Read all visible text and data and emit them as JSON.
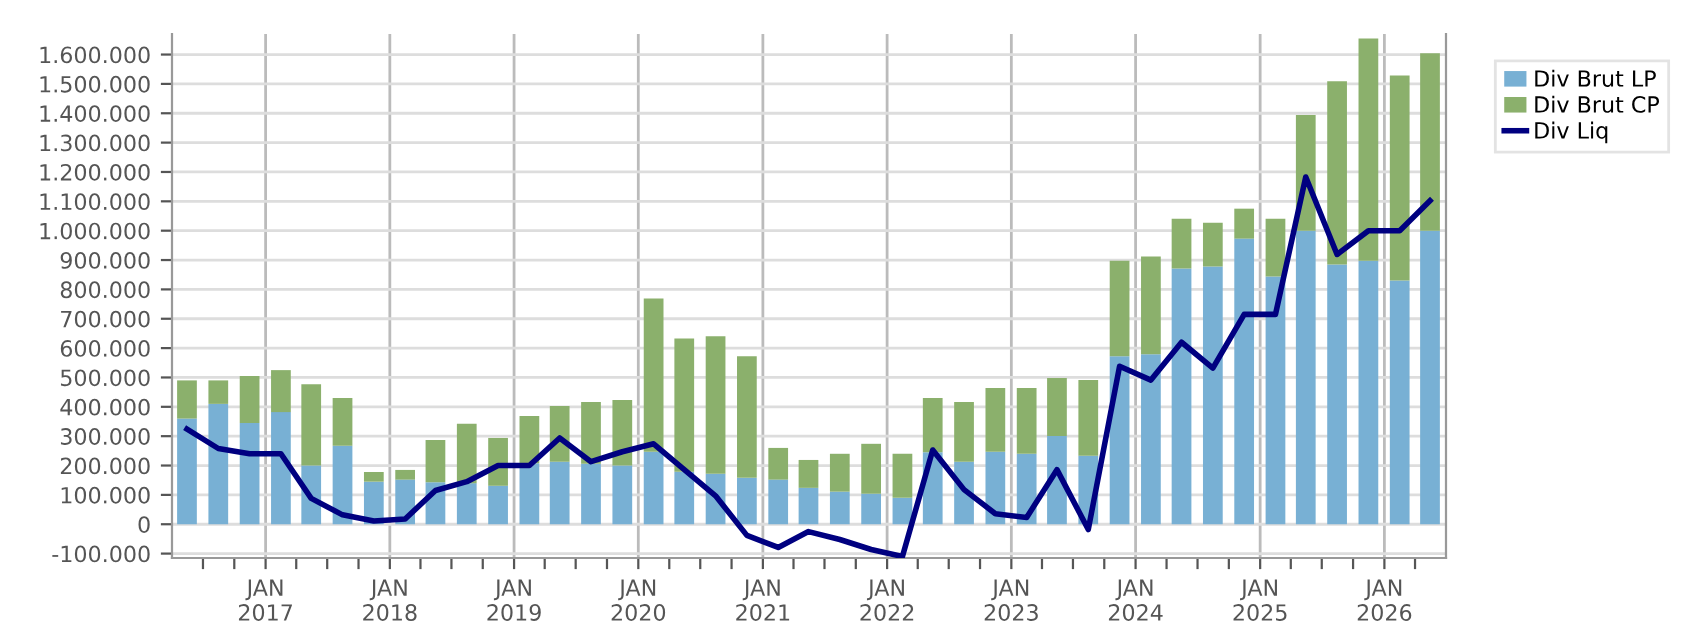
{
  "chart_data": {
    "type": "bar",
    "stacked": true,
    "x": [
      "2016-05-15",
      "2016-08-15",
      "2016-11-15",
      "2017-02-15",
      "2017-05-15",
      "2017-08-15",
      "2017-11-15",
      "2018-02-15",
      "2018-05-15",
      "2018-08-15",
      "2018-11-15",
      "2019-02-15",
      "2019-05-15",
      "2019-08-15",
      "2019-11-15",
      "2020-02-15",
      "2020-05-15",
      "2020-08-15",
      "2020-11-15",
      "2021-02-15",
      "2021-05-15",
      "2021-08-15",
      "2021-11-15",
      "2022-02-15",
      "2022-05-15",
      "2022-08-15",
      "2022-11-15",
      "2023-02-15",
      "2023-05-15",
      "2023-08-15",
      "2023-11-15",
      "2024-02-15",
      "2024-05-15",
      "2024-08-15",
      "2024-11-15",
      "2025-02-15",
      "2025-05-15",
      "2025-08-15",
      "2025-11-15",
      "2026-02-15",
      "2026-05-15"
    ],
    "series": [
      {
        "name": "Div Brut LP",
        "color": "#78b0d4",
        "values": [
          360000,
          410000,
          345000,
          382000,
          200000,
          267000,
          145000,
          152000,
          143000,
          140000,
          131000,
          208000,
          213000,
          206000,
          200000,
          247000,
          179000,
          172000,
          158000,
          152000,
          124000,
          111000,
          104000,
          90000,
          245000,
          213000,
          247000,
          240000,
          301000,
          233000,
          572000,
          579000,
          871000,
          878000,
          973000,
          844000,
          1000000,
          885000,
          898000,
          830000,
          1000000
        ]
      },
      {
        "name": "Div Brut CP",
        "color": "#8bb06c",
        "values": [
          130000,
          80000,
          160000,
          143000,
          277000,
          163000,
          33000,
          33000,
          144000,
          202000,
          163000,
          161000,
          190000,
          210000,
          223000,
          522000,
          454000,
          468000,
          414000,
          108000,
          95000,
          129000,
          170000,
          150000,
          185000,
          203000,
          217000,
          224000,
          197000,
          258000,
          326000,
          333000,
          170000,
          149000,
          102000,
          197000,
          394000,
          624000,
          757000,
          699000,
          604000
        ]
      },
      {
        "name": "Div Liq",
        "type": "line",
        "color": "#000080",
        "values": [
          324000,
          258000,
          240000,
          240000,
          88000,
          32000,
          11000,
          18000,
          115000,
          145000,
          200000,
          200000,
          294000,
          213000,
          247000,
          274000,
          186000,
          97000,
          -38000,
          -79000,
          -25000,
          -52000,
          -86000,
          -110000,
          253000,
          118000,
          36000,
          23000,
          186000,
          -18000,
          538000,
          491000,
          620000,
          532000,
          715000,
          715000,
          1183000,
          919000,
          1000000,
          1000000,
          1102000
        ]
      }
    ],
    "xlim": [
      "2016-04-01",
      "2026-07-01"
    ],
    "xticks": [
      {
        "value": "2016-07-01",
        "label": null
      },
      {
        "value": "2016-10-01",
        "label": null
      },
      {
        "value": "2017-01-01",
        "label": "JAN\n2017"
      },
      {
        "value": "2017-04-01",
        "label": null
      },
      {
        "value": "2017-07-01",
        "label": null
      },
      {
        "value": "2017-10-01",
        "label": null
      },
      {
        "value": "2018-01-01",
        "label": "JAN\n2018"
      },
      {
        "value": "2018-04-01",
        "label": null
      },
      {
        "value": "2018-07-01",
        "label": null
      },
      {
        "value": "2018-10-01",
        "label": null
      },
      {
        "value": "2019-01-01",
        "label": "JAN\n2019"
      },
      {
        "value": "2019-04-01",
        "label": null
      },
      {
        "value": "2019-07-01",
        "label": null
      },
      {
        "value": "2019-10-01",
        "label": null
      },
      {
        "value": "2020-01-01",
        "label": "JAN\n2020"
      },
      {
        "value": "2020-04-01",
        "label": null
      },
      {
        "value": "2020-07-01",
        "label": null
      },
      {
        "value": "2020-10-01",
        "label": null
      },
      {
        "value": "2021-01-01",
        "label": "JAN\n2021"
      },
      {
        "value": "2021-04-01",
        "label": null
      },
      {
        "value": "2021-07-01",
        "label": null
      },
      {
        "value": "2021-10-01",
        "label": null
      },
      {
        "value": "2022-01-01",
        "label": "JAN\n2022"
      },
      {
        "value": "2022-04-01",
        "label": null
      },
      {
        "value": "2022-07-01",
        "label": null
      },
      {
        "value": "2022-10-01",
        "label": null
      },
      {
        "value": "2023-01-01",
        "label": "JAN\n2023"
      },
      {
        "value": "2023-04-01",
        "label": null
      },
      {
        "value": "2023-07-01",
        "label": null
      },
      {
        "value": "2023-10-01",
        "label": null
      },
      {
        "value": "2024-01-01",
        "label": "JAN\n2024"
      },
      {
        "value": "2024-04-01",
        "label": null
      },
      {
        "value": "2024-07-01",
        "label": null
      },
      {
        "value": "2024-10-01",
        "label": null
      },
      {
        "value": "2025-01-01",
        "label": "JAN\n2025"
      },
      {
        "value": "2025-04-01",
        "label": null
      },
      {
        "value": "2025-07-01",
        "label": null
      },
      {
        "value": "2025-10-01",
        "label": null
      },
      {
        "value": "2026-01-01",
        "label": "JAN\n2026"
      },
      {
        "value": "2026-04-01",
        "label": null
      }
    ],
    "ylim": [
      -115000,
      1670000
    ],
    "yticks": [
      {
        "value": -100000,
        "label": "-100.000"
      },
      {
        "value": 0,
        "label": "0"
      },
      {
        "value": 100000,
        "label": "100.000"
      },
      {
        "value": 200000,
        "label": "200.000"
      },
      {
        "value": 300000,
        "label": "300.000"
      },
      {
        "value": 400000,
        "label": "400.000"
      },
      {
        "value": 500000,
        "label": "500.000"
      },
      {
        "value": 600000,
        "label": "600.000"
      },
      {
        "value": 700000,
        "label": "700.000"
      },
      {
        "value": 800000,
        "label": "800.000"
      },
      {
        "value": 900000,
        "label": "900.000"
      },
      {
        "value": 1000000,
        "label": "1.000.000"
      },
      {
        "value": 1100000,
        "label": "1.100.000"
      },
      {
        "value": 1200000,
        "label": "1.200.000"
      },
      {
        "value": 1300000,
        "label": "1.300.000"
      },
      {
        "value": 1400000,
        "label": "1.400.000"
      },
      {
        "value": 1500000,
        "label": "1.500.000"
      },
      {
        "value": 1600000,
        "label": "1.600.000"
      }
    ],
    "grid": true,
    "legend": "right"
  }
}
